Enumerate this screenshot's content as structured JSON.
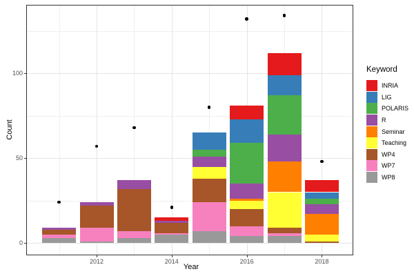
{
  "figure": {
    "background": "#ffffff",
    "panel_border_color": "#333333",
    "grid_major_color": "#e4e4e4",
    "grid_minor_color": "#efefef",
    "tick_color": "#333333",
    "tick_label_color": "#4d4d4d",
    "point_color": "#000000"
  },
  "chart_data": {
    "type": "bar",
    "subtype": "stacked-bar-with-scatter-points",
    "title": "",
    "xlabel": "Year",
    "ylabel": "Count",
    "x": [
      2011,
      2012,
      2013,
      2014,
      2015,
      2016,
      2017,
      2018
    ],
    "xticks": {
      "major": [
        2012,
        2014,
        2016,
        2018
      ],
      "minor": [
        2011,
        2013,
        2015,
        2017
      ]
    },
    "yticks": {
      "major": [
        0,
        50,
        100
      ],
      "minor": [
        25,
        75,
        125
      ]
    },
    "ylim": [
      0,
      140
    ],
    "grid": true,
    "legend": {
      "title": "Keyword",
      "position": "right"
    },
    "stack_order_bottom_to_top": [
      "WP8",
      "WP7",
      "WP4",
      "Teaching",
      "Seminar",
      "R",
      "POLARIS",
      "LIG",
      "INRIA"
    ],
    "series": [
      {
        "name": "INRIA",
        "color": "#e41a1c",
        "values": [
          0,
          0,
          0,
          2,
          0,
          8,
          13,
          7
        ]
      },
      {
        "name": "LIG",
        "color": "#377eb8",
        "values": [
          0,
          0,
          0,
          0,
          10,
          14,
          12,
          4
        ]
      },
      {
        "name": "POLARIS",
        "color": "#4daf4a",
        "values": [
          0,
          0,
          0,
          0,
          4,
          24,
          23,
          3
        ]
      },
      {
        "name": "R",
        "color": "#984ea3",
        "values": [
          1,
          2,
          5,
          1,
          6,
          9,
          16,
          6
        ]
      },
      {
        "name": "Seminar",
        "color": "#ff7f00",
        "values": [
          0,
          0,
          0,
          0,
          0,
          1,
          18,
          12
        ]
      },
      {
        "name": "Teaching",
        "color": "#ffff33",
        "values": [
          0,
          0,
          0,
          0,
          7,
          5,
          21,
          4
        ]
      },
      {
        "name": "WP4",
        "color": "#a65628",
        "values": [
          3,
          13,
          25,
          6,
          14,
          10,
          3,
          1
        ]
      },
      {
        "name": "WP7",
        "color": "#f781bf",
        "values": [
          2,
          8,
          4,
          1,
          17,
          6,
          2,
          0
        ]
      },
      {
        "name": "WP8",
        "color": "#999999",
        "values": [
          3,
          1,
          3,
          5,
          7,
          4,
          4,
          0
        ]
      }
    ],
    "bar_totals": [
      9,
      24,
      37,
      15,
      65,
      81,
      112,
      37
    ],
    "points": {
      "name": "yearly-total-markers",
      "x": [
        2011,
        2012,
        2013,
        2014,
        2015,
        2016,
        2017,
        2018
      ],
      "y": [
        24,
        57,
        68,
        21,
        80,
        132,
        134,
        48
      ]
    }
  }
}
